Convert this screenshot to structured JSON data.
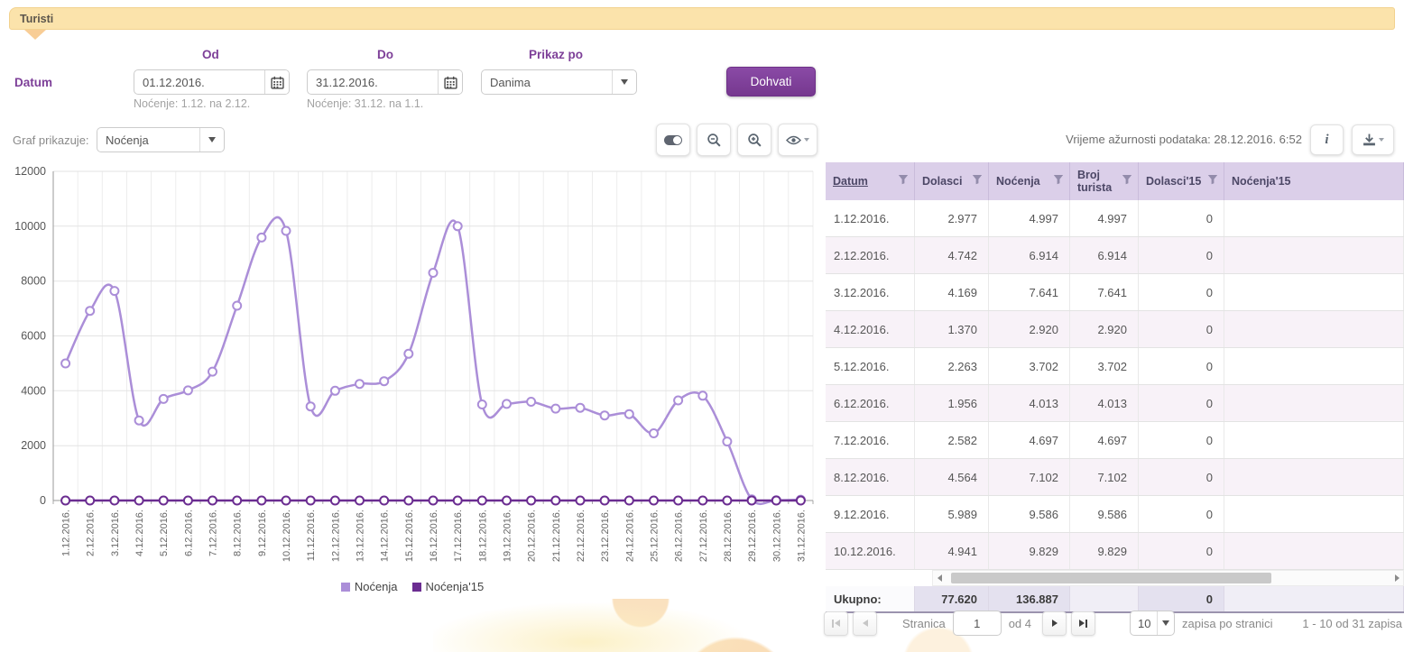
{
  "header": {
    "title": "Turisti"
  },
  "filters": {
    "datum_label": "Datum",
    "od_label": "Od",
    "do_label": "Do",
    "prikaz_label": "Prikaz po",
    "od_value": "01.12.2016.",
    "do_value": "31.12.2016.",
    "od_hint": "Noćenje: 1.12. na 2.12.",
    "do_hint": "Noćenje: 31.12. na 1.1.",
    "prikaz_value": "Danima",
    "fetch_button": "Dohvati"
  },
  "chart_controls": {
    "graf_label": "Graf prikazuje:",
    "graf_value": "Noćenja"
  },
  "status": {
    "updated_label": "Vrijeme ažurnosti podataka: 28.12.2016. 6:52",
    "info_glyph": "i"
  },
  "chart_data": {
    "type": "line",
    "x": [
      "1.12.2016.",
      "2.12.2016.",
      "3.12.2016.",
      "4.12.2016.",
      "5.12.2016.",
      "6.12.2016.",
      "7.12.2016.",
      "8.12.2016.",
      "9.12.2016.",
      "10.12.2016.",
      "11.12.2016.",
      "12.12.2016.",
      "13.12.2016.",
      "14.12.2016.",
      "15.12.2016.",
      "16.12.2016.",
      "17.12.2016.",
      "18.12.2016.",
      "19.12.2016.",
      "20.12.2016.",
      "21.12.2016.",
      "22.12.2016.",
      "23.12.2016.",
      "24.12.2016.",
      "25.12.2016.",
      "26.12.2016.",
      "27.12.2016.",
      "28.12.2016.",
      "29.12.2016.",
      "30.12.2016.",
      "31.12.2016."
    ],
    "series": [
      {
        "name": "Noćenja",
        "color": "#ab8ed8",
        "values": [
          4997,
          6914,
          7641,
          2920,
          3702,
          4013,
          4697,
          7102,
          9586,
          9829,
          3430,
          4000,
          4250,
          4350,
          5350,
          8300,
          10000,
          3500,
          3520,
          3600,
          3350,
          3380,
          3100,
          3150,
          2450,
          3650,
          3820,
          2150,
          40,
          10,
          30
        ]
      },
      {
        "name": "Noćenja'15",
        "color": "#6b2d91",
        "values": [
          0,
          0,
          0,
          0,
          0,
          0,
          0,
          0,
          0,
          0,
          0,
          0,
          0,
          0,
          0,
          0,
          0,
          0,
          0,
          0,
          0,
          0,
          0,
          0,
          0,
          0,
          0,
          0,
          0,
          0,
          0
        ]
      }
    ],
    "ylim": [
      0,
      12000
    ],
    "ytick_step": 2000,
    "grid": true,
    "legend_position": "bottom"
  },
  "table": {
    "columns": [
      "Datum",
      "Dolasci",
      "Noćenja",
      "Broj turista",
      "Dolasci'15",
      "Noćenja'15"
    ],
    "rows": [
      [
        "1.12.2016.",
        "2.977",
        "4.997",
        "4.997",
        "0",
        ""
      ],
      [
        "2.12.2016.",
        "4.742",
        "6.914",
        "6.914",
        "0",
        ""
      ],
      [
        "3.12.2016.",
        "4.169",
        "7.641",
        "7.641",
        "0",
        ""
      ],
      [
        "4.12.2016.",
        "1.370",
        "2.920",
        "2.920",
        "0",
        ""
      ],
      [
        "5.12.2016.",
        "2.263",
        "3.702",
        "3.702",
        "0",
        ""
      ],
      [
        "6.12.2016.",
        "1.956",
        "4.013",
        "4.013",
        "0",
        ""
      ],
      [
        "7.12.2016.",
        "2.582",
        "4.697",
        "4.697",
        "0",
        ""
      ],
      [
        "8.12.2016.",
        "4.564",
        "7.102",
        "7.102",
        "0",
        ""
      ],
      [
        "9.12.2016.",
        "5.989",
        "9.586",
        "9.586",
        "0",
        ""
      ],
      [
        "10.12.2016.",
        "4.941",
        "9.829",
        "9.829",
        "0",
        ""
      ]
    ],
    "totals": [
      "Ukupno:",
      "77.620",
      "136.887",
      "",
      "0",
      ""
    ]
  },
  "pagination": {
    "stranica_label": "Stranica",
    "page_value": "1",
    "of_label": "od 4",
    "page_size": "10",
    "zapisa_label": "zapisa po stranici",
    "range_label": "1 - 10 od 31 zapisa"
  }
}
